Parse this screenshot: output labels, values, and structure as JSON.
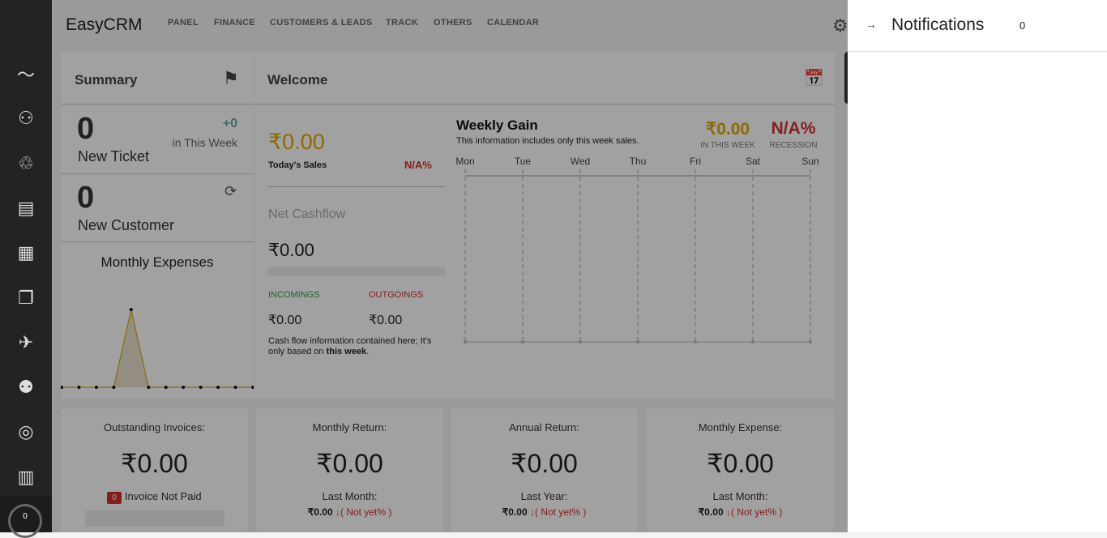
{
  "app": {
    "title": "EasyCRM"
  },
  "nav": [
    "PANEL",
    "FINANCE",
    "CUSTOMERS & LEADS",
    "TRACK",
    "OTHERS",
    "CALENDAR"
  ],
  "sidebar": {
    "icons": [
      "activity-icon",
      "hierarchy-icon",
      "customers-icon",
      "chart-board-icon",
      "documents-icon",
      "files-icon",
      "plane-money-icon",
      "team-icon",
      "support-icon",
      "clipboard-icon"
    ],
    "badge": "0"
  },
  "summary": {
    "title": "Summary",
    "ticket_count": "0",
    "ticket_label": "New Ticket",
    "ticket_delta": "+0",
    "ticket_delta_label": "in This Week",
    "customer_count": "0",
    "customer_label": "New Customer",
    "expenses_title": "Monthly Expenses"
  },
  "welcome": {
    "title": "Welcome",
    "today_sales": "₹0.00",
    "today_sales_label": "Today's Sales",
    "today_change": "N/A%",
    "net_cashflow_label": "Net Cashflow",
    "net_cashflow": "₹0.00",
    "incomings_label": "INCOMINGS",
    "outgoings_label": "OUTGOINGS",
    "incomings": "₹0.00",
    "outgoings": "₹0.00",
    "note_prefix": "Cash flow information contained here; It's only based on ",
    "note_bold": "this week",
    "note_suffix": "."
  },
  "weekly": {
    "title": "Weekly Gain",
    "subtitle": "This information includes only this week sales.",
    "gain": "₹0.00",
    "gain_label": "IN THIS WEEK",
    "recession": "N/A%",
    "recession_label": "RECESSION"
  },
  "stats": [
    {
      "title": "Outstanding Invoices:",
      "value": "₹0.00",
      "badge": "0",
      "sub": "Invoice Not Paid"
    },
    {
      "title": "Monthly Return:",
      "value": "₹0.00",
      "sub": "Last Month:",
      "cmp": "₹0.00",
      "arrow": "↓",
      "pct": "( Not yet% )"
    },
    {
      "title": "Annual Return:",
      "value": "₹0.00",
      "sub": "Last Year:",
      "cmp": "₹0.00",
      "arrow": "↓",
      "pct": "( Not yet% )"
    },
    {
      "title": "Monthly Expense:",
      "value": "₹0.00",
      "sub": "Last Month:",
      "cmp": "₹0.00",
      "arrow": "↓",
      "pct": "( Not yet% )"
    }
  ],
  "notifications": {
    "title": "Notifications",
    "count": "0"
  },
  "colors": {
    "accent": "#e0a800",
    "danger": "#d32f2f",
    "success": "#2e9e55"
  },
  "chart_data": [
    {
      "type": "area",
      "title": "Monthly Expenses",
      "values": [
        0,
        0,
        0,
        0,
        1,
        0,
        0,
        0,
        0,
        0,
        0,
        0
      ]
    },
    {
      "type": "line",
      "title": "Weekly Gain",
      "categories": [
        "Mon",
        "Tue",
        "Wed",
        "Thu",
        "Fri",
        "Sat",
        "Sun"
      ],
      "values": [
        0,
        0,
        0,
        0,
        0,
        0,
        0
      ]
    }
  ]
}
